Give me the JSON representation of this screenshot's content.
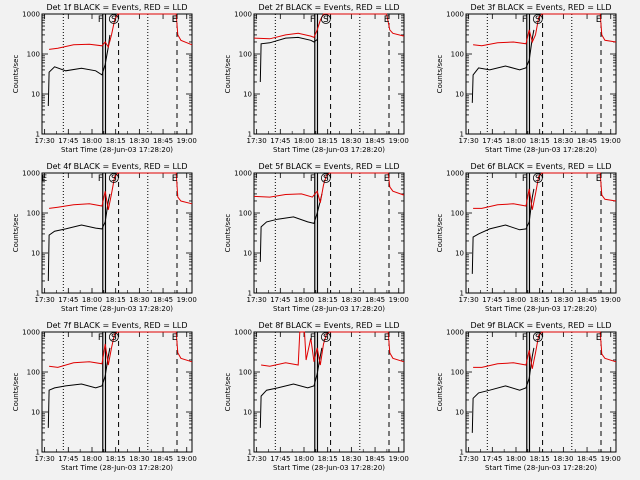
{
  "colors": {
    "events": "#000000",
    "lld": "#e00000",
    "background": "#f2f2f2"
  },
  "chart_data": [
    {
      "type": "line",
      "title": "Det 1f BLACK = Events, RED = LLD",
      "xlabel": "Start Time (28-Jun-03 17:28:20)",
      "ylabel": "Counts/sec",
      "xtick_labels": [
        "17:30",
        "17:45",
        "18:00",
        "18:15",
        "18:30",
        "18:45",
        "19:00"
      ],
      "ytick_labels": [
        "1",
        "10",
        "100",
        "1000"
      ],
      "yscale": "log",
      "ylim": [
        1,
        1000
      ],
      "xlim": [
        0,
        95
      ],
      "markers": [
        "F",
        "E",
        "S",
        "E"
      ],
      "series": [
        {
          "x": [
            4,
            4.5,
            8,
            15,
            25,
            34,
            38,
            40,
            42,
            43
          ],
          "y": [
            5,
            35,
            48,
            38,
            44,
            38,
            30,
            55,
            150,
            300
          ]
        },
        {
          "x": [
            4.5,
            10,
            20,
            30,
            38,
            40,
            42,
            44,
            46,
            48,
            85,
            86,
            88,
            95
          ],
          "y": [
            130,
            140,
            170,
            175,
            160,
            200,
            150,
            300,
            700,
            1000,
            1000,
            300,
            220,
            170
          ]
        }
      ]
    },
    {
      "type": "line",
      "title": "Det 2f BLACK = Events, RED = LLD",
      "xlabel": "Start Time (28-Jun-03 17:28:20)",
      "ylabel": "Counts/sec",
      "xtick_labels": [
        "17:30",
        "17:45",
        "18:00",
        "18:15",
        "18:30",
        "18:45",
        "19:00"
      ],
      "ytick_labels": [
        "1",
        "10",
        "100",
        "1000"
      ],
      "yscale": "log",
      "ylim": [
        1,
        1000
      ],
      "xlim": [
        0,
        95
      ],
      "markers": [
        "F",
        "S",
        "E"
      ],
      "series": [
        {
          "x": [
            4,
            4.5,
            10,
            20,
            28,
            36,
            38,
            40
          ],
          "y": [
            20,
            180,
            190,
            250,
            260,
            220,
            200,
            230
          ]
        },
        {
          "x": [
            0,
            10,
            20,
            28,
            36,
            38,
            40,
            42,
            44,
            45,
            84,
            86,
            88,
            95
          ],
          "y": [
            250,
            240,
            300,
            330,
            280,
            260,
            400,
            700,
            1000,
            1000,
            1000,
            400,
            330,
            280
          ]
        }
      ]
    },
    {
      "type": "line",
      "title": "Det 3f BLACK = Events, RED = LLD",
      "xlabel": "Start Time (28-Jun-03 17:28:20)",
      "ylabel": "Counts/sec",
      "xtick_labels": [
        "17:30",
        "17:45",
        "18:00",
        "18:15",
        "18:30",
        "18:45",
        "19:00"
      ],
      "ytick_labels": [
        "1",
        "10",
        "100",
        "1000"
      ],
      "yscale": "log",
      "ylim": [
        1,
        1000
      ],
      "xlim": [
        0,
        95
      ],
      "markers": [
        "F",
        "S",
        "E"
      ],
      "series": [
        {
          "x": [
            4,
            4.5,
            8,
            15,
            25,
            34,
            38,
            40,
            42,
            43
          ],
          "y": [
            6,
            30,
            45,
            40,
            50,
            40,
            45,
            70,
            250,
            400
          ]
        },
        {
          "x": [
            4.5,
            10,
            20,
            30,
            38,
            40,
            42,
            44,
            46,
            48,
            85,
            86,
            88,
            95
          ],
          "y": [
            170,
            160,
            190,
            200,
            180,
            400,
            200,
            300,
            800,
            1000,
            1000,
            300,
            220,
            200
          ]
        }
      ]
    },
    {
      "type": "line",
      "title": "Det 4f BLACK = Events, RED = LLD",
      "xlabel": "Start Time (28-Jun-03 17:28:20)",
      "ylabel": "Counts/sec",
      "xtick_labels": [
        "17:30",
        "17:45",
        "18:00",
        "18:15",
        "18:30",
        "18:45",
        "19:00"
      ],
      "ytick_labels": [
        "1",
        "10",
        "100",
        "1000"
      ],
      "yscale": "log",
      "ylim": [
        1,
        1000
      ],
      "xlim": [
        0,
        95
      ],
      "markers": [
        "E",
        "F",
        "S",
        "E"
      ],
      "series": [
        {
          "x": [
            4,
            4.5,
            8,
            15,
            25,
            34,
            38,
            40,
            42,
            43
          ],
          "y": [
            2,
            28,
            35,
            40,
            50,
            42,
            40,
            60,
            200,
            300
          ]
        },
        {
          "x": [
            4.5,
            10,
            20,
            30,
            38,
            40,
            42,
            44,
            46,
            48,
            85,
            86,
            88,
            95
          ],
          "y": [
            130,
            140,
            160,
            170,
            150,
            350,
            120,
            300,
            800,
            1000,
            1000,
            250,
            200,
            170
          ]
        }
      ]
    },
    {
      "type": "line",
      "title": "Det 5f BLACK = Events, RED = LLD",
      "xlabel": "Start Time (28-Jun-03 17:28:20)",
      "ylabel": "Counts/sec",
      "xtick_labels": [
        "17:30",
        "17:45",
        "18:00",
        "18:15",
        "18:30",
        "18:45",
        "19:00"
      ],
      "ytick_labels": [
        "1",
        "10",
        "100",
        "1000"
      ],
      "yscale": "log",
      "ylim": [
        1,
        1000
      ],
      "xlim": [
        0,
        95
      ],
      "markers": [
        "F",
        "S",
        "E"
      ],
      "series": [
        {
          "x": [
            4,
            4.5,
            8,
            15,
            25,
            34,
            38,
            40,
            42,
            43
          ],
          "y": [
            6,
            45,
            60,
            70,
            80,
            60,
            55,
            100,
            200,
            300
          ]
        },
        {
          "x": [
            0,
            10,
            20,
            30,
            37,
            40,
            42,
            44,
            46,
            48,
            85,
            86,
            88,
            95
          ],
          "y": [
            260,
            250,
            290,
            300,
            250,
            350,
            180,
            500,
            900,
            1000,
            1000,
            450,
            350,
            280
          ]
        }
      ]
    },
    {
      "type": "line",
      "title": "Det 6f BLACK = Events, RED = LLD",
      "xlabel": "Start Time (28-Jun-03 17:28:20)",
      "ylabel": "Counts/sec",
      "xtick_labels": [
        "17:30",
        "17:45",
        "18:00",
        "18:15",
        "18:30",
        "18:45",
        "19:00"
      ],
      "ytick_labels": [
        "1",
        "10",
        "100",
        "1000"
      ],
      "yscale": "log",
      "ylim": [
        1,
        1000
      ],
      "xlim": [
        0,
        95
      ],
      "markers": [
        "F",
        "S",
        "E"
      ],
      "series": [
        {
          "x": [
            4,
            4.5,
            8,
            15,
            25,
            34,
            38,
            40,
            42,
            43
          ],
          "y": [
            3,
            25,
            30,
            40,
            50,
            38,
            40,
            60,
            250,
            400
          ]
        },
        {
          "x": [
            4.5,
            10,
            20,
            30,
            38,
            40,
            42,
            44,
            46,
            48,
            85,
            86,
            88,
            95
          ],
          "y": [
            130,
            130,
            160,
            170,
            150,
            400,
            120,
            300,
            800,
            1000,
            1000,
            280,
            220,
            200
          ]
        }
      ]
    },
    {
      "type": "line",
      "title": "Det 7f BLACK = Events, RED = LLD",
      "xlabel": "Start Time (28-Jun-03 17:28:20)",
      "ylabel": "Counts/sec",
      "xtick_labels": [
        "17:30",
        "17:45",
        "18:00",
        "18:15",
        "18:30",
        "18:45",
        "19:00"
      ],
      "ytick_labels": [
        "1",
        "10",
        "100",
        "1000"
      ],
      "yscale": "log",
      "ylim": [
        1,
        1000
      ],
      "xlim": [
        0,
        95
      ],
      "markers": [
        "F",
        "S",
        "E"
      ],
      "series": [
        {
          "x": [
            4,
            4.5,
            8,
            15,
            25,
            34,
            38,
            40,
            42,
            43
          ],
          "y": [
            4,
            35,
            40,
            45,
            50,
            40,
            45,
            80,
            250,
            400
          ]
        },
        {
          "x": [
            4.5,
            10,
            20,
            30,
            38,
            40,
            42,
            44,
            46,
            48,
            85,
            86,
            88,
            95
          ],
          "y": [
            140,
            130,
            170,
            180,
            160,
            500,
            150,
            400,
            900,
            1000,
            1000,
            300,
            220,
            180
          ]
        }
      ]
    },
    {
      "type": "line",
      "title": "Det 8f BLACK = Events, RED = LLD",
      "xlabel": "Start Time (28-Jun-03 17:28:20)",
      "ylabel": "Counts/sec",
      "xtick_labels": [
        "17:30",
        "17:45",
        "18:00",
        "18:15",
        "18:30",
        "18:45",
        "19:00"
      ],
      "ytick_labels": [
        "1",
        "10",
        "100",
        "1000"
      ],
      "yscale": "log",
      "ylim": [
        1,
        1000
      ],
      "xlim": [
        0,
        95
      ],
      "markers": [
        "F",
        "S",
        "E"
      ],
      "series": [
        {
          "x": [
            4,
            4.5,
            8,
            15,
            25,
            34,
            38,
            40,
            42,
            43
          ],
          "y": [
            4,
            25,
            35,
            40,
            50,
            40,
            45,
            90,
            250,
            400
          ]
        },
        {
          "x": [
            4.5,
            10,
            20,
            28,
            29,
            32,
            33,
            36,
            38,
            40,
            42,
            44,
            46,
            48,
            85,
            86,
            88,
            95
          ],
          "y": [
            150,
            140,
            170,
            150,
            1000,
            1000,
            200,
            700,
            180,
            400,
            150,
            500,
            900,
            1000,
            1000,
            300,
            220,
            180
          ]
        }
      ]
    },
    {
      "type": "line",
      "title": "Det 9f BLACK = Events, RED = LLD",
      "xlabel": "Start Time (28-Jun-03 17:28:20)",
      "ylabel": "Counts/sec",
      "xtick_labels": [
        "17:30",
        "17:45",
        "18:00",
        "18:15",
        "18:30",
        "18:45",
        "19:00"
      ],
      "ytick_labels": [
        "1",
        "10",
        "100",
        "1000"
      ],
      "yscale": "log",
      "ylim": [
        1,
        1000
      ],
      "xlim": [
        0,
        95
      ],
      "markers": [
        "F",
        "S",
        "E"
      ],
      "series": [
        {
          "x": [
            4,
            4.5,
            8,
            15,
            25,
            34,
            38,
            40,
            42,
            43
          ],
          "y": [
            3,
            22,
            30,
            35,
            45,
            35,
            40,
            70,
            250,
            400
          ]
        },
        {
          "x": [
            4.5,
            10,
            20,
            30,
            38,
            40,
            42,
            44,
            46,
            48,
            85,
            86,
            88,
            95
          ],
          "y": [
            130,
            130,
            160,
            170,
            150,
            350,
            120,
            300,
            800,
            1000,
            1000,
            280,
            220,
            180
          ]
        }
      ]
    }
  ]
}
